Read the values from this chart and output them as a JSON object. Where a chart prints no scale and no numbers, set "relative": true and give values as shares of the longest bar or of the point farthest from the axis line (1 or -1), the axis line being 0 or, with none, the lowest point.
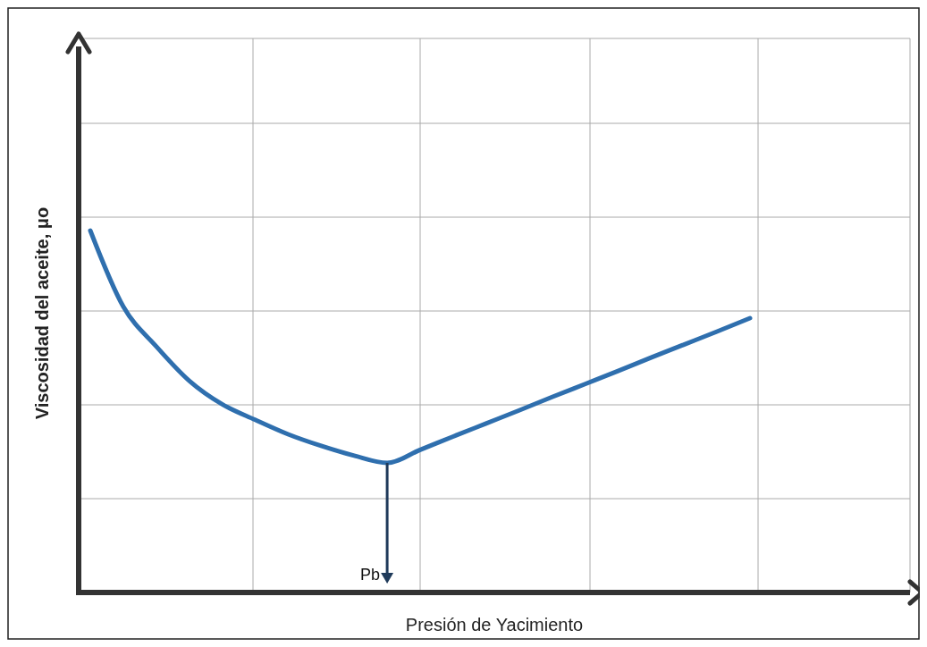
{
  "chart_data": {
    "type": "line",
    "relative": true,
    "xlabel": "Presión de Yacimiento",
    "ylabel": "Viscosidad del aceite, μo",
    "annotations": [
      "Pb"
    ],
    "grid": true,
    "marker": "none",
    "line_style": "solid",
    "categories": [
      null,
      null,
      null,
      null,
      null,
      null,
      null,
      null,
      null,
      null,
      null,
      null,
      null,
      null,
      null,
      null,
      null,
      null,
      null,
      null,
      null
    ],
    "series": [
      {
        "color": "#2f6fae",
        "values": [
          1.0,
          0.79,
          0.68,
          0.585,
          0.52,
          0.477,
          0.437,
          0.405,
          0.378,
          0.358,
          0.394,
          0.431,
          0.467,
          0.503,
          0.54,
          0.576,
          0.612,
          0.649,
          0.685,
          0.721,
          0.758
        ]
      }
    ]
  }
}
